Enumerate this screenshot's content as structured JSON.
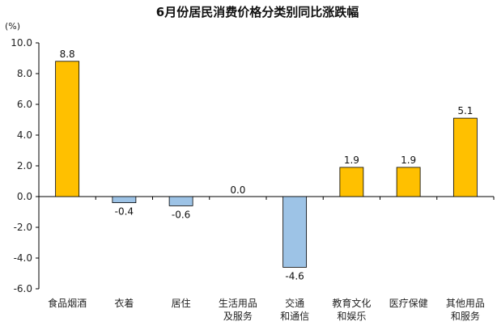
{
  "chart_data": {
    "type": "bar",
    "title": "6月份居民消费价格分类别同比涨跌幅",
    "unit": "(%)",
    "ylim": [
      -6.0,
      10.0
    ],
    "yticks": [
      "10.0",
      "8.0",
      "6.0",
      "4.0",
      "2.0",
      "0.0",
      "-2.0",
      "-4.0",
      "-6.0"
    ],
    "categories": [
      [
        "食品烟酒"
      ],
      [
        "衣着"
      ],
      [
        "居住"
      ],
      [
        "生活用品",
        "及服务"
      ],
      [
        "交通",
        "和通信"
      ],
      [
        "教育文化",
        "和娱乐"
      ],
      [
        "医疗保健"
      ],
      [
        "其他用品",
        "和服务"
      ]
    ],
    "values": [
      8.8,
      -0.4,
      -0.6,
      0.0,
      -4.6,
      1.9,
      1.9,
      5.1
    ],
    "value_labels": [
      "8.8",
      "-0.4",
      "-0.6",
      "0.0",
      "-4.6",
      "1.9",
      "1.9",
      "5.1"
    ],
    "colors": {
      "positive": "#FFC000",
      "negative": "#9DC3E6",
      "positive_stroke": "#000000",
      "negative_stroke": "#000000",
      "axis": "#000000"
    },
    "grid": false,
    "legend": "none"
  }
}
